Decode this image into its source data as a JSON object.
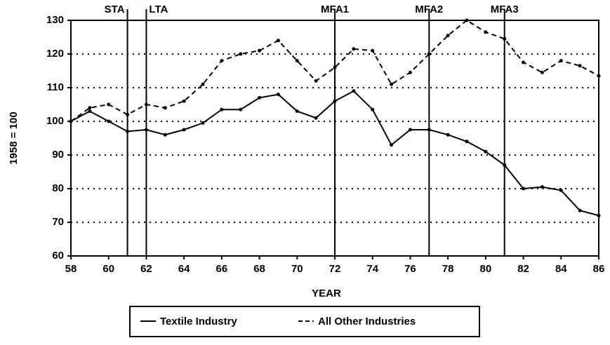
{
  "chart_data": {
    "type": "line",
    "x": [
      58,
      59,
      60,
      61,
      62,
      63,
      64,
      65,
      66,
      67,
      68,
      69,
      70,
      71,
      72,
      73,
      74,
      75,
      76,
      77,
      78,
      79,
      80,
      81,
      82,
      83,
      84,
      85,
      86
    ],
    "series": [
      {
        "name": "Textile Industry",
        "color": "#000000",
        "dash": false,
        "values": [
          100,
          103,
          100,
          97,
          97.5,
          96,
          97.5,
          99.5,
          103.5,
          103.5,
          107,
          108,
          103,
          101,
          106,
          109,
          103.5,
          93,
          97.5,
          97.5,
          96,
          94,
          91,
          87,
          80,
          80.5,
          79.5,
          73.5,
          72
        ]
      },
      {
        "name": "All Other Industries",
        "color": "#000000",
        "dash": true,
        "values": [
          100,
          104,
          105,
          102,
          105,
          104,
          106,
          111,
          118,
          120,
          121,
          124,
          118,
          112,
          116,
          121.5,
          121,
          111,
          114.5,
          120,
          125.5,
          130,
          126.5,
          124.5,
          117.5,
          114.5,
          118,
          116.5,
          113.5
        ]
      }
    ],
    "xlabel": "YEAR",
    "ylabel": "1958 = 100",
    "xlim": [
      58,
      86
    ],
    "xticks": [
      58,
      60,
      62,
      64,
      66,
      68,
      70,
      72,
      74,
      76,
      78,
      80,
      82,
      84,
      86
    ],
    "ylim": [
      60,
      130
    ],
    "yticks": [
      60,
      70,
      80,
      90,
      100,
      110,
      120,
      130
    ],
    "grid": true,
    "legend": "bottom",
    "annotations": [
      {
        "x": 61,
        "label": "STA"
      },
      {
        "x": 62,
        "label": "LTA"
      },
      {
        "x": 72,
        "label": "MFA1"
      },
      {
        "x": 77,
        "label": "MFA2"
      },
      {
        "x": 81,
        "label": "MFA3"
      }
    ]
  }
}
